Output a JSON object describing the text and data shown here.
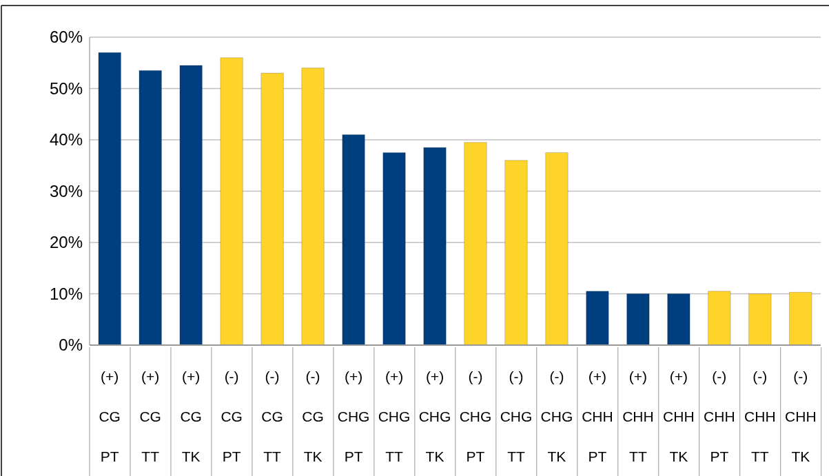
{
  "chart_data": {
    "type": "bar",
    "categories": [
      "(+)\nCG\nPT",
      "(+)\nCG\nTT",
      "(+)\nCG\nTK",
      "(-)\nCG\nPT",
      "(-)\nCG\nTT",
      "(-)\nCG\nTK",
      "(+)\nCHG\nPT",
      "(+)\nCHG\nTT",
      "(+)\nCHG\nTK",
      "(-)\nCHG\nPT",
      "(-)\nCHG\nTT",
      "(-)\nCHG\nTK",
      "(+)\nCHH\nPT",
      "(+)\nCHH\nTT",
      "(+)\nCHH\nTK",
      "(-)\nCHH\nPT",
      "(-)\nCHH\nTT",
      "(-)\nCHH\nTK"
    ],
    "values": [
      57,
      53.5,
      54.5,
      56,
      53,
      54,
      41,
      37.5,
      38.5,
      39.5,
      36,
      37.5,
      10.5,
      10,
      10,
      10.5,
      10,
      10.3
    ],
    "colors": [
      "#003f7f",
      "#003f7f",
      "#003f7f",
      "#ffd42a",
      "#ffd42a",
      "#ffd42a",
      "#003f7f",
      "#003f7f",
      "#003f7f",
      "#ffd42a",
      "#ffd42a",
      "#ffd42a",
      "#003f7f",
      "#003f7f",
      "#003f7f",
      "#ffd42a",
      "#ffd42a",
      "#ffd42a"
    ],
    "ylim": [
      0,
      60
    ],
    "yticks": [
      {
        "value": 0,
        "label": "0%"
      },
      {
        "value": 10,
        "label": "10%"
      },
      {
        "value": 20,
        "label": "20%"
      },
      {
        "value": 30,
        "label": "30%"
      },
      {
        "value": 40,
        "label": "40%"
      },
      {
        "value": 50,
        "label": "50%"
      },
      {
        "value": 60,
        "label": "60%"
      }
    ],
    "grid": true
  }
}
